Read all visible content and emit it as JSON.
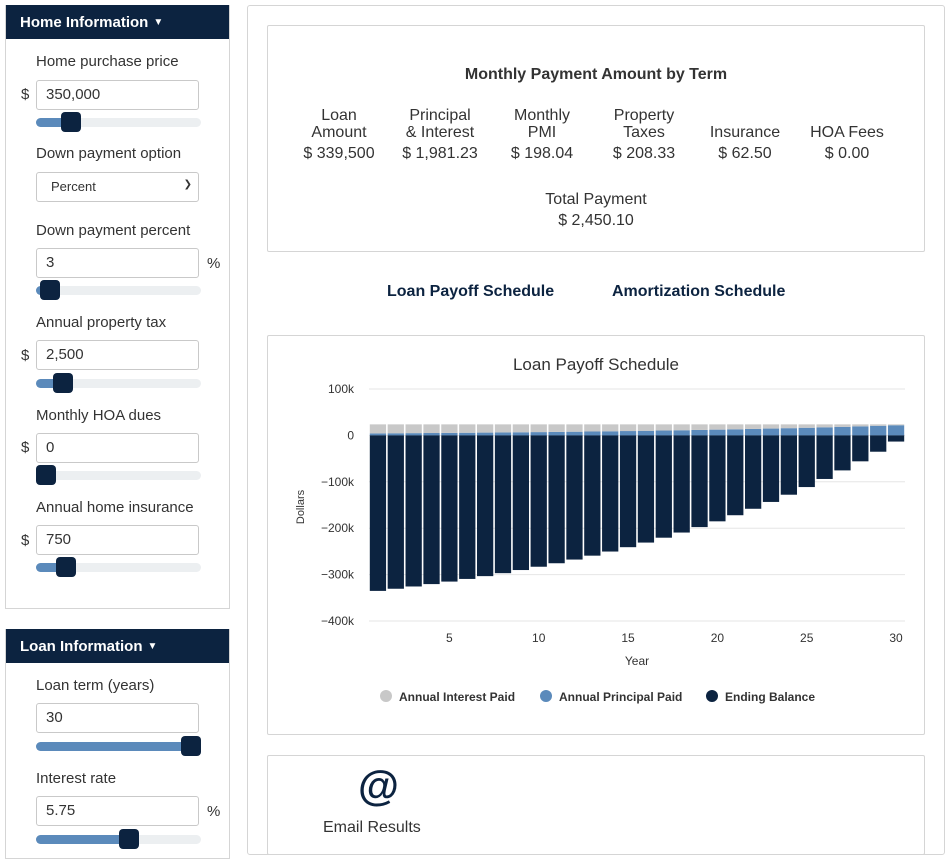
{
  "home_panel": {
    "title": "Home Information",
    "purchase_price": {
      "label": "Home purchase price",
      "prefix": "$",
      "value": "350,000",
      "slider_fraction": 0.17
    },
    "down_payment_option": {
      "label": "Down payment option",
      "value": "Percent"
    },
    "down_payment_percent": {
      "label": "Down payment percent",
      "value": "3",
      "suffix": "%",
      "slider_fraction": 0.03
    },
    "property_tax": {
      "label": "Annual property tax",
      "prefix": "$",
      "value": "2,500",
      "slider_fraction": 0.12
    },
    "hoa_dues": {
      "label": "Monthly HOA dues",
      "prefix": "$",
      "value": "0",
      "slider_fraction": 0.0
    },
    "home_insurance": {
      "label": "Annual home insurance",
      "prefix": "$",
      "value": "750",
      "slider_fraction": 0.14
    }
  },
  "loan_panel": {
    "title": "Loan Information",
    "loan_term": {
      "label": "Loan term (years)",
      "value": "30",
      "slider_fraction": 1.0
    },
    "interest_rate": {
      "label": "Interest rate",
      "value": "5.75",
      "suffix": "%",
      "slider_fraction": 0.57
    }
  },
  "summary": {
    "title": "Monthly Payment Amount by Term",
    "metrics": [
      {
        "label_1": "Loan",
        "label_2": "Amount",
        "value": "$ 339,500"
      },
      {
        "label_1": "Principal",
        "label_2": "& Interest",
        "value": "$ 1,981.23"
      },
      {
        "label_1": "Monthly",
        "label_2": "PMI",
        "value": "$ 198.04"
      },
      {
        "label_1": "Property",
        "label_2": "Taxes",
        "value": "$ 208.33"
      },
      {
        "label_1": "",
        "label_2": "Insurance",
        "value": "$ 62.50"
      },
      {
        "label_1": "",
        "label_2": "HOA Fees",
        "value": "$ 0.00"
      }
    ],
    "total_label": "Total Payment",
    "total_value": "$ 2,450.10"
  },
  "tabs": {
    "payoff": "Loan Payoff Schedule",
    "amortization": "Amortization Schedule"
  },
  "email": {
    "icon": "at-icon",
    "label": "Email Results"
  },
  "colors": {
    "navy": "#0c2340",
    "principal": "#5b8abb",
    "interest": "#c8c8c8"
  },
  "chart_data": {
    "type": "bar",
    "title": "Loan Payoff Schedule",
    "xlabel": "Year",
    "ylabel": "Dollars",
    "ylim": [
      -400000,
      100000
    ],
    "y_ticks": [
      100000,
      0,
      -100000,
      -200000,
      -300000,
      -400000
    ],
    "y_tick_labels": [
      "100k",
      "0",
      "−100k",
      "−200k",
      "−300k",
      "−400k"
    ],
    "x_ticks": [
      5,
      10,
      15,
      20,
      25,
      30
    ],
    "categories": [
      1,
      2,
      3,
      4,
      5,
      6,
      7,
      8,
      9,
      10,
      11,
      12,
      13,
      14,
      15,
      16,
      17,
      18,
      19,
      20,
      21,
      22,
      23,
      24,
      25,
      26,
      27,
      28,
      29,
      30
    ],
    "series": [
      {
        "name": "Annual Interest Paid",
        "color": "#c8c8c8",
        "values": [
          19400,
          19160,
          18910,
          18640,
          18360,
          18060,
          17740,
          17400,
          17040,
          16660,
          16260,
          15830,
          15380,
          14900,
          14390,
          13850,
          13280,
          12670,
          12030,
          11350,
          10630,
          9870,
          9060,
          8200,
          7290,
          6330,
          5310,
          4230,
          3090,
          1880
        ]
      },
      {
        "name": "Annual Principal Paid",
        "color": "#5b8abb",
        "values": [
          4380,
          4630,
          4880,
          5140,
          5420,
          5720,
          6040,
          6380,
          6740,
          7120,
          7520,
          7950,
          8400,
          8880,
          9390,
          9930,
          10500,
          11110,
          11750,
          12430,
          13150,
          13910,
          14720,
          15580,
          16490,
          17450,
          18470,
          19550,
          20690,
          21900
        ]
      },
      {
        "name": "Ending Balance",
        "color": "#0c2340",
        "values": [
          -335120,
          -330490,
          -325610,
          -320470,
          -315050,
          -309330,
          -303290,
          -296910,
          -290170,
          -283050,
          -275530,
          -267580,
          -259180,
          -250300,
          -240910,
          -230980,
          -220480,
          -209370,
          -197620,
          -185190,
          -172040,
          -158130,
          -143410,
          -127830,
          -111340,
          -93890,
          -75420,
          -55870,
          -35180,
          -13280
        ]
      }
    ],
    "legend_position": "bottom"
  }
}
